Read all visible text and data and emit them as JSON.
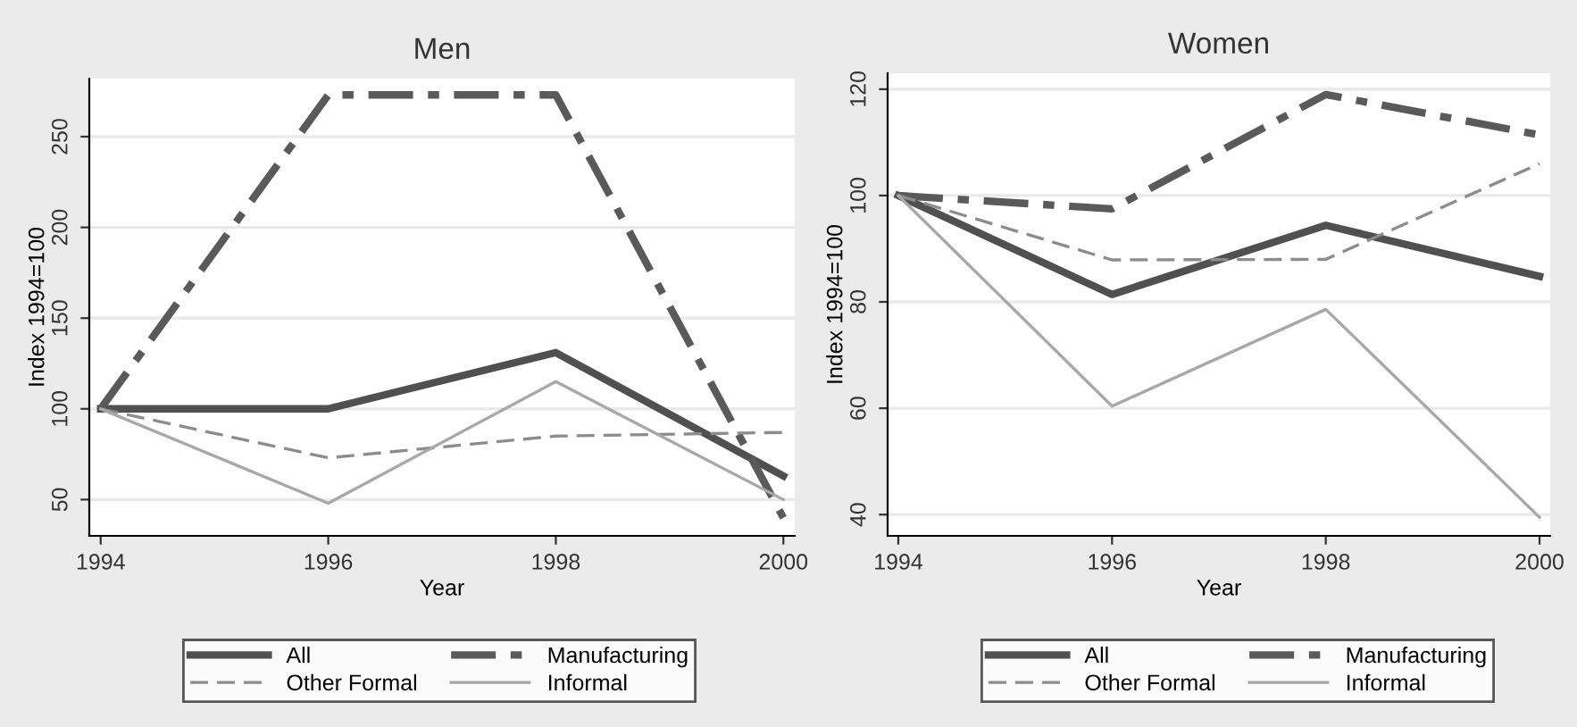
{
  "chart_data": [
    {
      "type": "line",
      "title": "Men",
      "xlabel": "Year",
      "ylabel": "Index 1994=100",
      "x": [
        1994,
        1996,
        1998,
        2000
      ],
      "xlim": [
        1993.9,
        2000.1
      ],
      "xticks": [
        1994,
        1996,
        1998,
        2000
      ],
      "ylim": [
        30,
        282
      ],
      "yticks": [
        50,
        100,
        150,
        200,
        250
      ],
      "grid": "y",
      "legend": "bottom",
      "series": [
        {
          "name": "All",
          "color": "#505050",
          "line_style": "solid",
          "values": [
            100,
            100,
            131,
            63
          ]
        },
        {
          "name": "Manufacturing",
          "color": "#5a5a5a",
          "line_style": "dashdot",
          "values": [
            100,
            273,
            273,
            40
          ]
        },
        {
          "name": "Other Formal",
          "color": "#8c8c8c",
          "line_style": "dashed",
          "values": [
            100,
            73,
            85,
            87
          ]
        },
        {
          "name": "Informal",
          "color": "#a8a8a8",
          "line_style": "solid",
          "values": [
            100,
            48,
            115,
            50
          ]
        }
      ]
    },
    {
      "type": "line",
      "title": "Women",
      "xlabel": "Year",
      "ylabel": "Index 1994=100",
      "x": [
        1994,
        1996,
        1998,
        2000
      ],
      "xlim": [
        1993.9,
        2000.1
      ],
      "xticks": [
        1994,
        1996,
        1998,
        2000
      ],
      "ylim": [
        36,
        123
      ],
      "yticks": [
        40,
        60,
        80,
        100,
        120
      ],
      "grid": "y",
      "legend": "bottom",
      "series": [
        {
          "name": "All",
          "color": "#505050",
          "line_style": "solid",
          "values": [
            100,
            81.4,
            94.4,
            84.8
          ]
        },
        {
          "name": "Manufacturing",
          "color": "#5a5a5a",
          "line_style": "dashdot",
          "values": [
            100,
            97.5,
            119,
            111.4
          ]
        },
        {
          "name": "Other Formal",
          "color": "#8c8c8c",
          "line_style": "dashed",
          "values": [
            100,
            87.9,
            88,
            106
          ]
        },
        {
          "name": "Informal",
          "color": "#a8a8a8",
          "line_style": "solid",
          "values": [
            100,
            60.4,
            78.6,
            39.5
          ]
        }
      ]
    }
  ]
}
